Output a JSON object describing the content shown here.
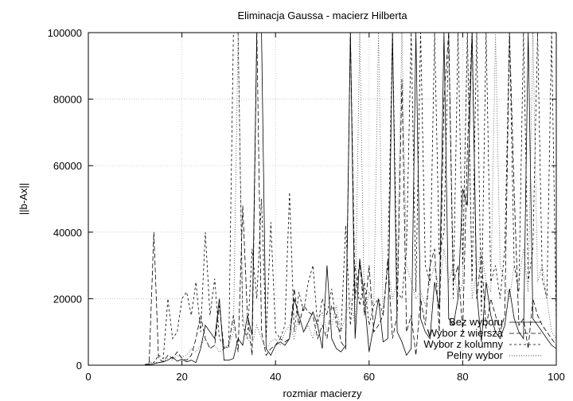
{
  "chart_data": {
    "type": "line",
    "title": "Eliminacja Gaussa - macierz Hilberta",
    "xlabel": "rozmiar macierzy",
    "ylabel": "||b-Ax||",
    "xlim": [
      0,
      100
    ],
    "ylim": [
      0,
      100000
    ],
    "x_ticks": [
      0,
      20,
      40,
      60,
      80,
      100
    ],
    "y_ticks": [
      0,
      20000,
      40000,
      60000,
      80000,
      100000
    ],
    "grid": true,
    "legend_position": "bottom-right",
    "series": [
      {
        "name": "Bez wyboru",
        "dash": "solid",
        "x": [
          12,
          13,
          14,
          15,
          16,
          17,
          18,
          19,
          20,
          21,
          22,
          23,
          24,
          25,
          26,
          27,
          28,
          29,
          30,
          31,
          32,
          33,
          34,
          35,
          36,
          37,
          38,
          39,
          40,
          41,
          42,
          43,
          44,
          45,
          46,
          47,
          48,
          49,
          50,
          51,
          52,
          53,
          54,
          55,
          56,
          57,
          58,
          59,
          60,
          61,
          62,
          63,
          64,
          65,
          66,
          67,
          68,
          69,
          70,
          71,
          72,
          73,
          74,
          75,
          76,
          77,
          78,
          79,
          80,
          81,
          82,
          83,
          84,
          85,
          86,
          87,
          88,
          89,
          90,
          91,
          92,
          93,
          94,
          95,
          96,
          97,
          98,
          99,
          100
        ],
        "y": [
          0,
          200,
          400,
          800,
          1000,
          1500,
          2500,
          1200,
          1800,
          1000,
          1500,
          800,
          5000,
          12000,
          10000,
          8000,
          20000,
          1500,
          1500,
          2000,
          8000,
          6000,
          15000,
          9000,
          100000,
          100000,
          5000,
          3000,
          6000,
          7000,
          6000,
          8000,
          20000,
          15000,
          10000,
          13000,
          16000,
          12000,
          5000,
          30000,
          8000,
          5000,
          4000,
          6000,
          100000,
          8000,
          32000,
          20000,
          4000,
          12000,
          20000,
          7000,
          8000,
          100000,
          10000,
          7000,
          3000,
          5000,
          100000,
          14000,
          10000,
          8000,
          25000,
          17000,
          100000,
          14000,
          12000,
          20000,
          53000,
          48000,
          100000,
          22000,
          7000,
          25000,
          15000,
          10000,
          8000,
          12000,
          23000,
          14000,
          10000,
          8000,
          100000,
          14000,
          12000,
          10000,
          8000,
          6000,
          5000
        ]
      },
      {
        "name": "Wybor z wiersza",
        "dash": "dashed",
        "x": [
          12,
          13,
          14,
          15,
          16,
          17,
          18,
          19,
          20,
          21,
          22,
          23,
          24,
          25,
          26,
          27,
          28,
          29,
          30,
          31,
          32,
          33,
          34,
          35,
          36,
          37,
          38,
          39,
          40,
          41,
          42,
          43,
          44,
          45,
          46,
          47,
          48,
          49,
          50,
          51,
          52,
          53,
          54,
          55,
          56,
          57,
          58,
          59,
          60,
          61,
          62,
          63,
          64,
          65,
          66,
          67,
          68,
          69,
          70,
          71,
          72,
          73,
          74,
          75,
          76,
          77,
          78,
          79,
          80,
          81,
          82,
          83,
          84,
          85,
          86,
          87,
          88,
          89,
          90,
          91,
          92,
          93,
          94,
          95,
          96,
          97,
          98,
          99,
          100
        ],
        "y": [
          0,
          500,
          40000,
          2000,
          1000,
          3000,
          2000,
          4000,
          2000,
          1500,
          3000,
          8000,
          15000,
          8000,
          5000,
          6000,
          18000,
          5000,
          6000,
          15000,
          4000,
          48000,
          15000,
          3000,
          100000,
          10000,
          3000,
          5000,
          6000,
          8000,
          7000,
          8000,
          23000,
          12000,
          18000,
          16000,
          15000,
          8000,
          12000,
          8000,
          18000,
          15000,
          7000,
          5000,
          100000,
          20000,
          31000,
          15000,
          30000,
          10000,
          12000,
          15000,
          32000,
          8000,
          15000,
          86000,
          10000,
          15000,
          3000,
          20000,
          12000,
          30000,
          35000,
          10000,
          80000,
          100000,
          25000,
          30000,
          10000,
          65000,
          100000,
          20000,
          33000,
          11000,
          20000,
          15000,
          10000,
          15000,
          100000,
          52000,
          12000,
          14000,
          5000,
          20000,
          15000,
          12000,
          10000,
          8000,
          6000
        ]
      },
      {
        "name": "Wybor z kolumny",
        "dash": "short-dash",
        "x": [
          12,
          13,
          14,
          15,
          16,
          17,
          18,
          19,
          20,
          21,
          22,
          23,
          24,
          25,
          26,
          27,
          28,
          29,
          30,
          31,
          32,
          33,
          34,
          35,
          36,
          37,
          38,
          39,
          40,
          41,
          42,
          43,
          44,
          45,
          46,
          47,
          48,
          49,
          50,
          51,
          52,
          53,
          54,
          55,
          56,
          57,
          58,
          59,
          60,
          61,
          62,
          63,
          64,
          65,
          66,
          67,
          68,
          69,
          70,
          71,
          72,
          73,
          74,
          75,
          76,
          77,
          78,
          79,
          80,
          81,
          82,
          83,
          84,
          85,
          86,
          87,
          88,
          89,
          90,
          91,
          92,
          93,
          94,
          95,
          96,
          97,
          98,
          99,
          100
        ],
        "y": [
          0,
          1000,
          800,
          3000,
          2000,
          20000,
          8000,
          10000,
          20000,
          22000,
          15000,
          25000,
          10000,
          40000,
          15000,
          26000,
          8000,
          6000,
          5000,
          100000,
          100000,
          12000,
          8000,
          35000,
          20000,
          50000,
          8000,
          43000,
          10000,
          8000,
          12000,
          52000,
          10000,
          22000,
          16000,
          25000,
          30000,
          12000,
          20000,
          15000,
          23000,
          12000,
          10000,
          42000,
          12000,
          30000,
          18000,
          25000,
          12000,
          18000,
          20000,
          15000,
          30000,
          100000,
          22000,
          20000,
          35000,
          100000,
          22000,
          100000,
          30000,
          25000,
          100000,
          33000,
          40000,
          100000,
          20000,
          100000,
          30000,
          100000,
          25000,
          100000,
          15000,
          100000,
          25000,
          30000,
          20000,
          35000,
          100000,
          30000,
          22000,
          100000,
          25000,
          35000,
          100000,
          26000,
          20000,
          100000,
          12000
        ]
      },
      {
        "name": "Pelny wybor",
        "dash": "dotted",
        "x": [
          12,
          13,
          14,
          15,
          16,
          17,
          18,
          19,
          20,
          21,
          22,
          23,
          24,
          25,
          26,
          27,
          28,
          29,
          30,
          31,
          32,
          33,
          34,
          35,
          36,
          37,
          38,
          39,
          40,
          41,
          42,
          43,
          44,
          45,
          46,
          47,
          48,
          49,
          50,
          51,
          52,
          53,
          54,
          55,
          56,
          57,
          58,
          59,
          60,
          61,
          62,
          63,
          64,
          65,
          66,
          67,
          68,
          69,
          70,
          71,
          72,
          73,
          74,
          75,
          76,
          77,
          78,
          79,
          80,
          81,
          82,
          83,
          84,
          85,
          86,
          87,
          88,
          89,
          90,
          91,
          92,
          93,
          94,
          95,
          96,
          97,
          98,
          99,
          100
        ],
        "y": [
          0,
          500,
          1000,
          800,
          1200,
          2000,
          1500,
          3000,
          2500,
          3000,
          5000,
          4000,
          6000,
          8000,
          5000,
          6000,
          4000,
          5000,
          6000,
          10000,
          100000,
          15000,
          8000,
          6000,
          12000,
          8000,
          5000,
          7000,
          8000,
          6000,
          10000,
          12000,
          8000,
          15000,
          10000,
          12000,
          8000,
          14000,
          16000,
          10000,
          12000,
          18000,
          10000,
          15000,
          20000,
          12000,
          100000,
          15000,
          22000,
          18000,
          100000,
          15000,
          30000,
          20000,
          25000,
          100000,
          30000,
          25000,
          20000,
          22000,
          18000,
          25000,
          30000,
          22000,
          35000,
          25000,
          30000,
          20000,
          25000,
          100000,
          20000,
          28000,
          35000,
          25000,
          22000,
          100000,
          30000,
          25000,
          20000,
          30000,
          25000,
          35000,
          22000,
          100000,
          25000,
          30000,
          20000,
          10000,
          8000
        ]
      }
    ]
  }
}
